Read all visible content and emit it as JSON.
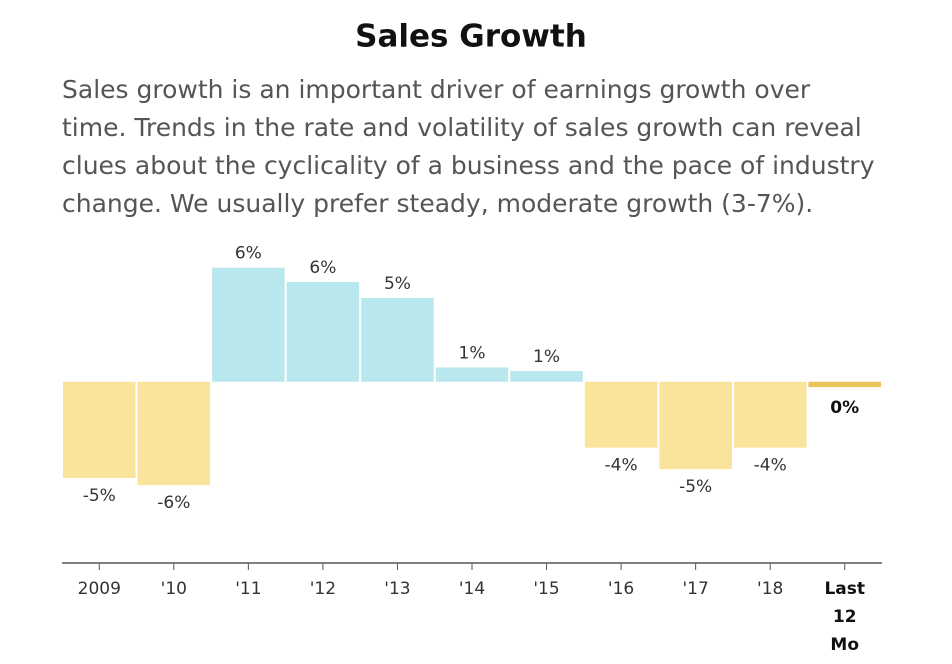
{
  "chart_data": {
    "type": "bar",
    "title": "Sales Growth",
    "subtitle": "Sales growth is an important driver of earnings growth over time. Trends in the rate and volatility of sales growth can reveal clues about the cyclicality of a business and the pace of industry change. We usually prefer steady, moderate growth (3-7%).",
    "categories": [
      "2009",
      "'10",
      "'11",
      "'12",
      "'13",
      "'14",
      "'15",
      "'16",
      "'17",
      "'18",
      "Last 12 Mo"
    ],
    "values": [
      -5.4,
      -5.8,
      6.4,
      5.6,
      4.7,
      0.8,
      0.6,
      -3.7,
      -4.9,
      -3.7,
      -0.3
    ],
    "value_labels": [
      "-5%",
      "-6%",
      "6%",
      "6%",
      "5%",
      "1%",
      "1%",
      "-4%",
      "-5%",
      "-4%",
      "0%"
    ],
    "positive_color": "#b9e7ee",
    "negative_color": "#fae49b",
    "highlight_color": "#e8c45a",
    "highlight_last": true,
    "ylim": [
      -10,
      7
    ]
  }
}
